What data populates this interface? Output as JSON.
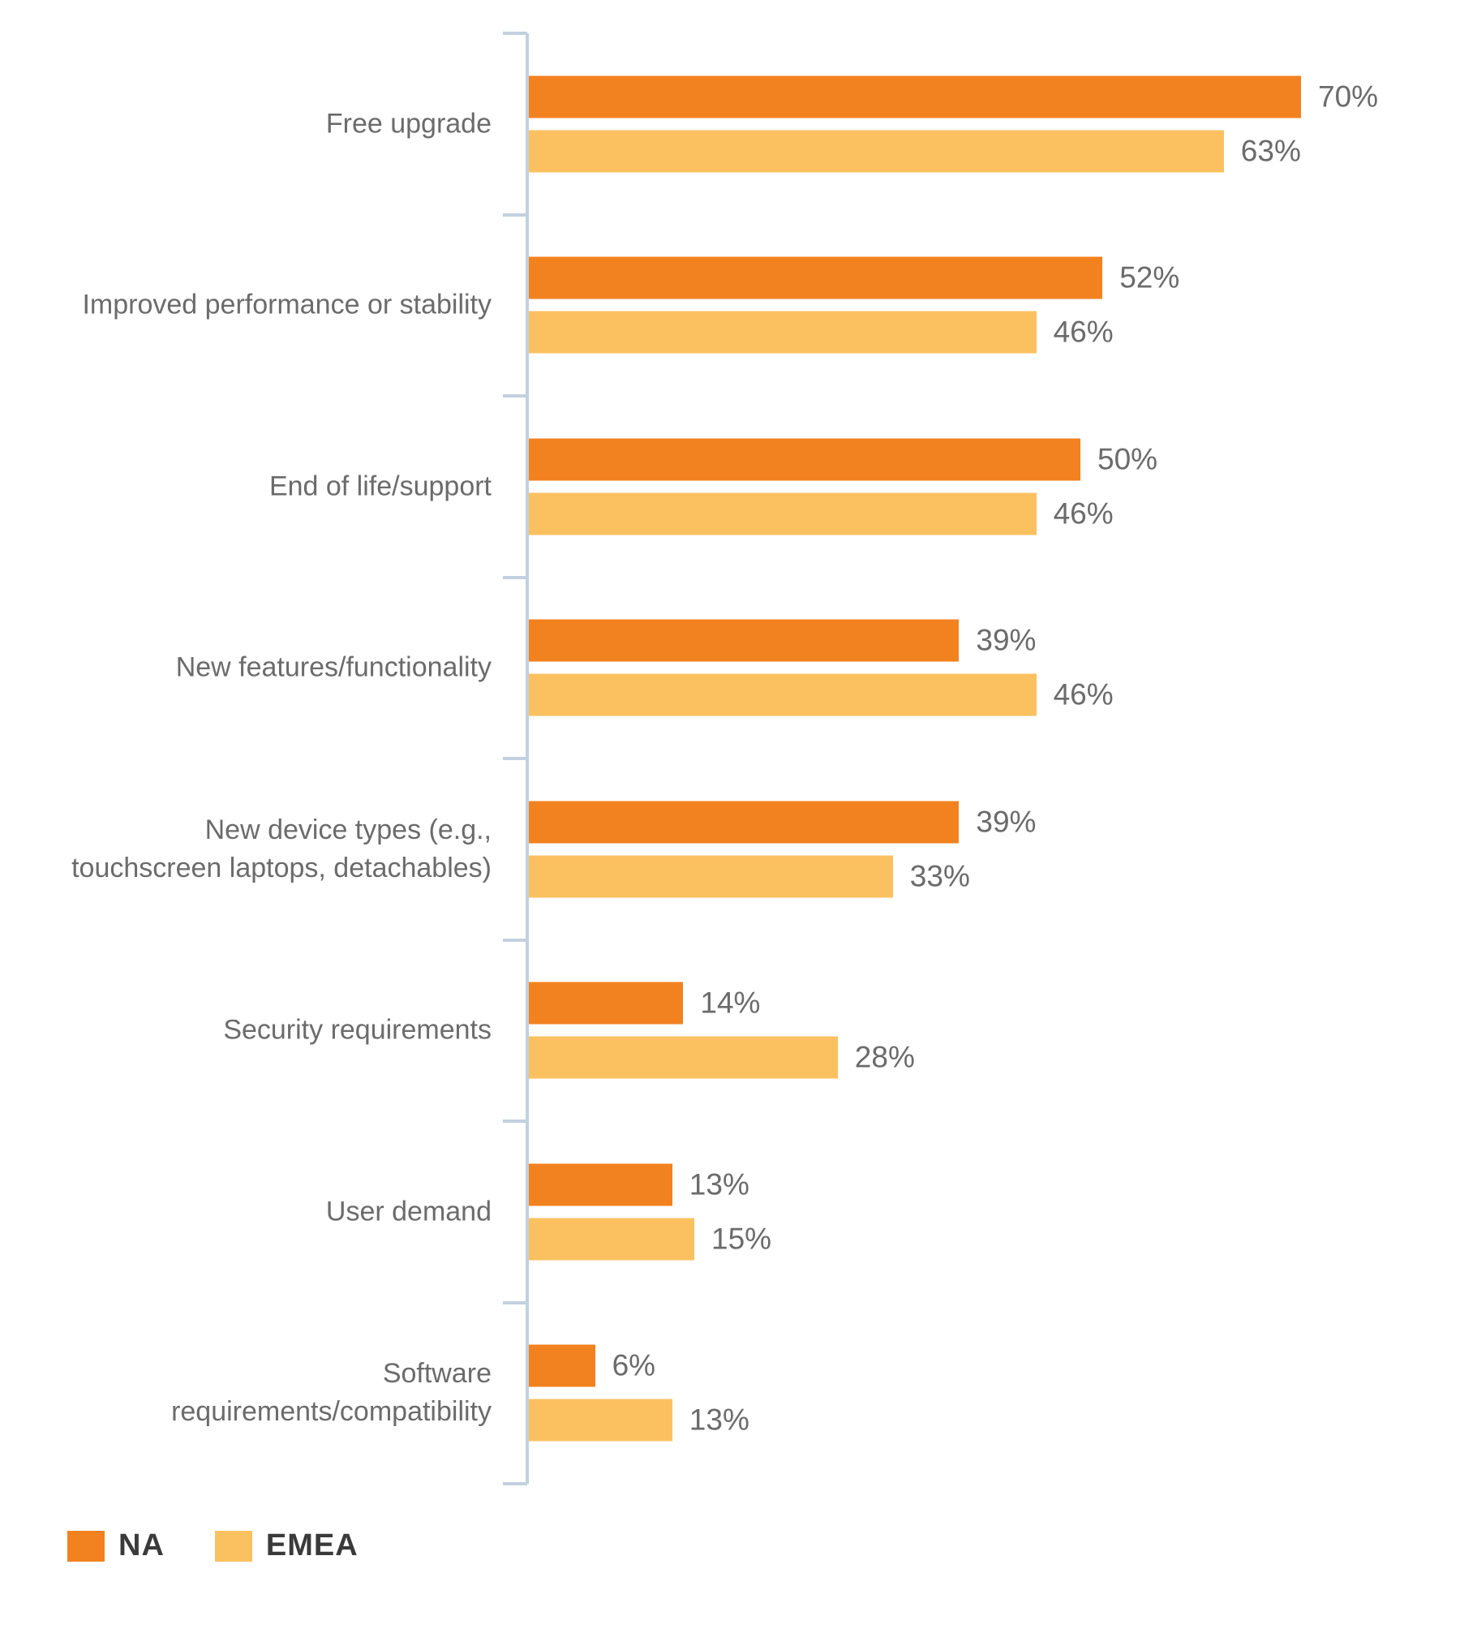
{
  "chart_data": {
    "type": "bar",
    "orientation": "horizontal",
    "title": "",
    "xlabel": "",
    "ylabel": "",
    "value_suffix": "%",
    "xlim": [
      0,
      75
    ],
    "grid": false,
    "legend_position": "bottom-left",
    "categories": [
      {
        "lines": [
          "Free upgrade"
        ]
      },
      {
        "lines": [
          "Improved performance or stability"
        ]
      },
      {
        "lines": [
          "End of life/support"
        ]
      },
      {
        "lines": [
          "New features/functionality"
        ]
      },
      {
        "lines": [
          "New device types (e.g.,",
          "touchscreen laptops, detachables)"
        ]
      },
      {
        "lines": [
          "Security requirements"
        ]
      },
      {
        "lines": [
          "User demand"
        ]
      },
      {
        "lines": [
          "Software",
          "requirements/compatibility"
        ]
      }
    ],
    "series": [
      {
        "name": "NA",
        "color": "#F2821F",
        "values": [
          70,
          52,
          50,
          39,
          39,
          14,
          13,
          6
        ]
      },
      {
        "name": "EMEA",
        "color": "#FBC160",
        "values": [
          63,
          46,
          46,
          46,
          33,
          28,
          15,
          13
        ]
      }
    ],
    "data_labels": [
      {
        "NA": "70%",
        "EMEA": "63%"
      },
      {
        "NA": "52%",
        "EMEA": "46%"
      },
      {
        "NA": "50%",
        "EMEA": "46%"
      },
      {
        "NA": "39%",
        "EMEA": "46%"
      },
      {
        "NA": "39%",
        "EMEA": "33%"
      },
      {
        "NA": "14%",
        "EMEA": "28%"
      },
      {
        "NA": "13%",
        "EMEA": "15%"
      },
      {
        "NA": "6%",
        "EMEA": "13%"
      }
    ],
    "axis_color": "#C3D0DF",
    "label_color": "#6B6B6B",
    "legend_text_color": "#3A3A3A"
  }
}
